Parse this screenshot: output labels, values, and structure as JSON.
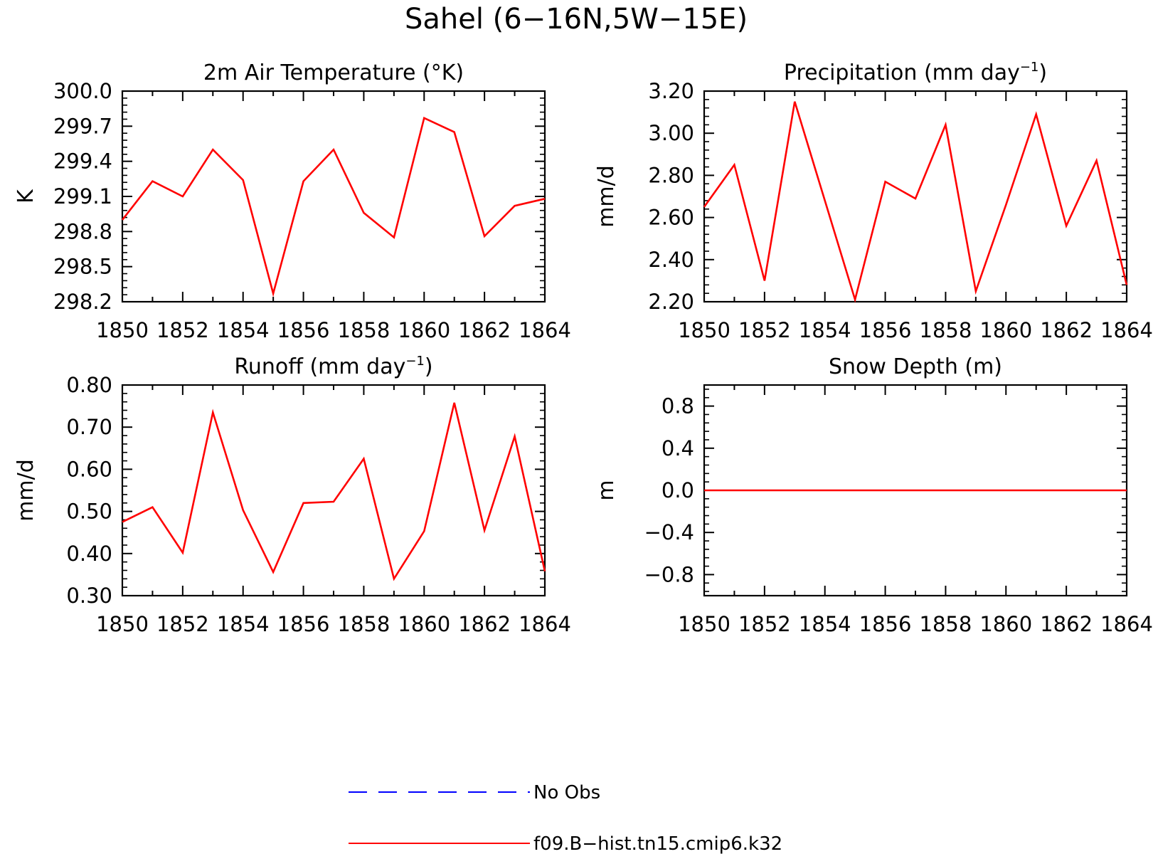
{
  "title": "Sahel (6−16N,5W−15E)",
  "chart_data": [
    {
      "type": "line",
      "title": "2m Air Temperature (°K)",
      "ylabel": "K",
      "xlim": [
        1850,
        1864
      ],
      "ylim": [
        298.2,
        300.0
      ],
      "yticks": [
        "298.2",
        "298.5",
        "298.8",
        "299.1",
        "299.4",
        "299.7",
        "300.0"
      ],
      "xticks": [
        "1850",
        "1852",
        "1854",
        "1856",
        "1858",
        "1860",
        "1862",
        "1864"
      ],
      "x": [
        1850,
        1851,
        1852,
        1853,
        1854,
        1855,
        1856,
        1857,
        1858,
        1859,
        1860,
        1861,
        1862,
        1863,
        1864
      ],
      "series": [
        {
          "color": "#ff0000",
          "values": [
            298.9,
            299.23,
            299.1,
            299.5,
            299.24,
            298.27,
            299.23,
            299.5,
            298.96,
            298.75,
            299.77,
            299.65,
            298.76,
            299.02,
            299.08
          ]
        }
      ]
    },
    {
      "type": "line",
      "title": "Precipitation (mm day",
      "title_sup": "−1",
      "title_end": ")",
      "ylabel": "mm/d",
      "xlim": [
        1850,
        1864
      ],
      "ylim": [
        2.2,
        3.2
      ],
      "yticks": [
        "2.20",
        "2.40",
        "2.60",
        "2.80",
        "3.00",
        "3.20"
      ],
      "xticks": [
        "1850",
        "1852",
        "1854",
        "1856",
        "1858",
        "1860",
        "1862",
        "1864"
      ],
      "x": [
        1850,
        1851,
        1852,
        1853,
        1854,
        1855,
        1856,
        1857,
        1858,
        1859,
        1860,
        1861,
        1862,
        1863,
        1864
      ],
      "series": [
        {
          "color": "#ff0000",
          "values": [
            2.65,
            2.85,
            2.3,
            3.15,
            2.68,
            2.21,
            2.77,
            2.69,
            3.04,
            2.25,
            2.66,
            3.09,
            2.56,
            2.87,
            2.28
          ]
        }
      ]
    },
    {
      "type": "line",
      "title": "Runoff (mm day",
      "title_sup": "−1",
      "title_end": ")",
      "ylabel": "mm/d",
      "xlim": [
        1850,
        1864
      ],
      "ylim": [
        0.3,
        0.8
      ],
      "yticks": [
        "0.30",
        "0.40",
        "0.50",
        "0.60",
        "0.70",
        "0.80"
      ],
      "xticks": [
        "1850",
        "1852",
        "1854",
        "1856",
        "1858",
        "1860",
        "1862",
        "1864"
      ],
      "x": [
        1850,
        1851,
        1852,
        1853,
        1854,
        1855,
        1856,
        1857,
        1858,
        1859,
        1860,
        1861,
        1862,
        1863,
        1864
      ],
      "series": [
        {
          "color": "#ff0000",
          "values": [
            0.475,
            0.51,
            0.402,
            0.735,
            0.503,
            0.356,
            0.52,
            0.523,
            0.625,
            0.34,
            0.453,
            0.758,
            0.455,
            0.678,
            0.358
          ]
        }
      ]
    },
    {
      "type": "line",
      "title": "Snow Depth (m)",
      "ylabel": "m",
      "xlim": [
        1850,
        1864
      ],
      "ylim": [
        -1.0,
        1.0
      ],
      "yticks": [
        "−0.8",
        "−0.4",
        "0.0",
        "0.4",
        "0.8"
      ],
      "ytick_values": [
        -0.8,
        -0.4,
        0.0,
        0.4,
        0.8
      ],
      "xticks": [
        "1850",
        "1852",
        "1854",
        "1856",
        "1858",
        "1860",
        "1862",
        "1864"
      ],
      "x": [
        1850,
        1851,
        1852,
        1853,
        1854,
        1855,
        1856,
        1857,
        1858,
        1859,
        1860,
        1861,
        1862,
        1863,
        1864
      ],
      "series": [
        {
          "color": "#ff0000",
          "values": [
            0,
            0,
            0,
            0,
            0,
            0,
            0,
            0,
            0,
            0,
            0,
            0,
            0,
            0,
            0
          ]
        }
      ]
    }
  ],
  "legend": [
    {
      "label": "No Obs",
      "color": "#0000ff",
      "style": "dashed"
    },
    {
      "label": "f09.B−hist.tn15.cmip6.k32",
      "color": "#ff0000",
      "style": "solid"
    }
  ]
}
